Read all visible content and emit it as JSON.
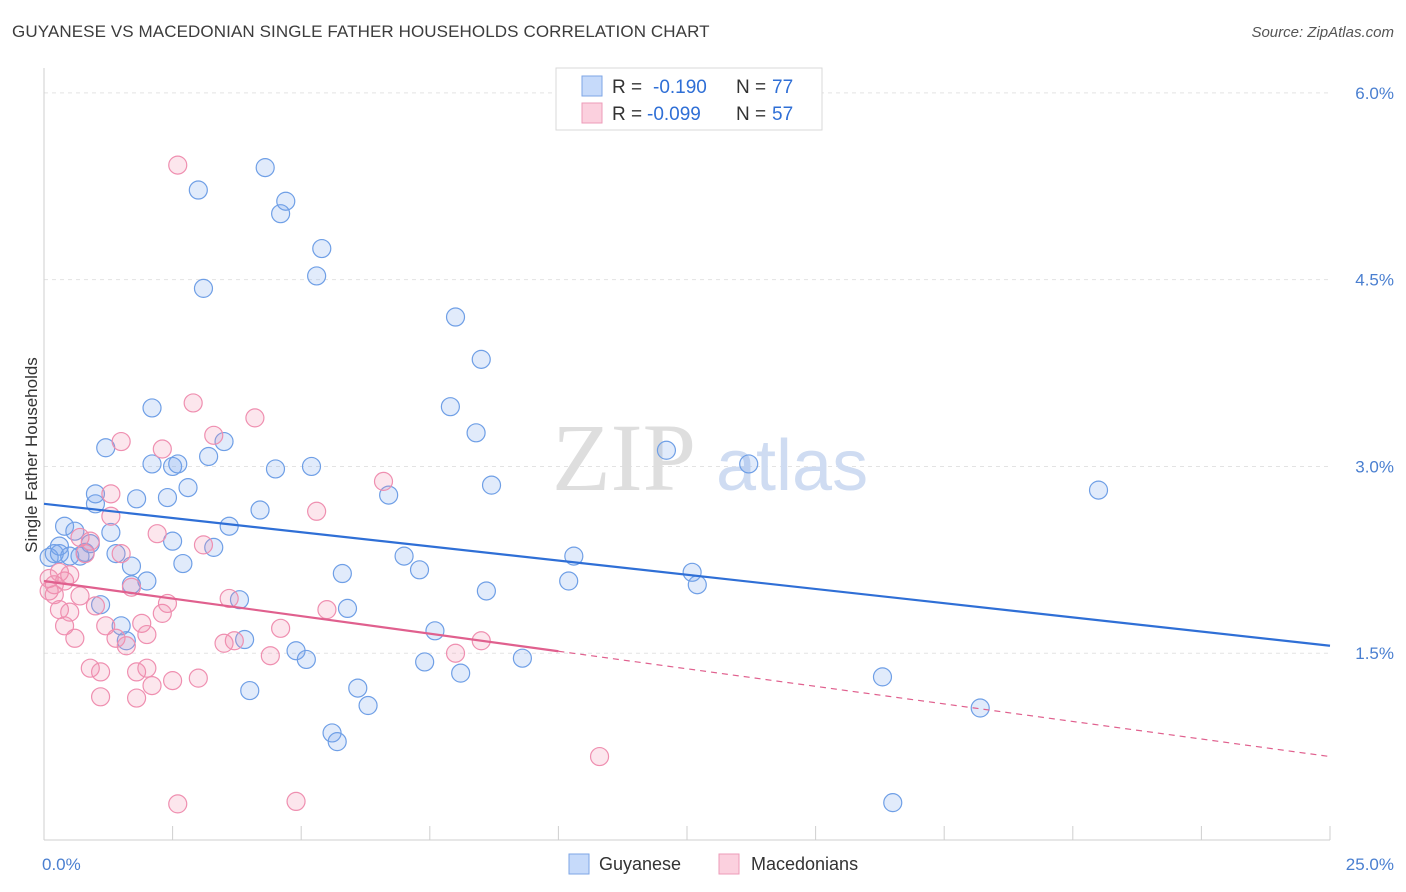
{
  "header": {
    "title": "GUYANESE VS MACEDONIAN SINGLE FATHER HOUSEHOLDS CORRELATION CHART",
    "source": "Source: ZipAtlas.com"
  },
  "watermark": {
    "zip": "ZIP",
    "atlas": "atlas"
  },
  "legend": {
    "r_label": "R =",
    "n_label": "N =",
    "entries": [
      {
        "r": "-0.190",
        "n": "77",
        "color": "#6f9fe6"
      },
      {
        "r": "-0.099",
        "n": "57",
        "color": "#ef8fb0"
      }
    ]
  },
  "bottom_legend": [
    {
      "label": "Guyanese",
      "color": "#6f9fe6"
    },
    {
      "label": "Macedonians",
      "color": "#ef8fb0"
    }
  ],
  "chart_data": {
    "type": "scatter",
    "title": "GUYANESE VS MACEDONIAN SINGLE FATHER HOUSEHOLDS CORRELATION CHART",
    "xlabel": "",
    "ylabel": "Single Father Households",
    "xlim": [
      0,
      25
    ],
    "ylim": [
      0,
      6.2
    ],
    "x_tick_labels": [
      {
        "value": 0,
        "label": "0.0%"
      },
      {
        "value": 25,
        "label": "25.0%"
      }
    ],
    "y_tick_labels": [
      {
        "value": 1.5,
        "label": "1.5%"
      },
      {
        "value": 3.0,
        "label": "3.0%"
      },
      {
        "value": 4.5,
        "label": "4.5%"
      },
      {
        "value": 6.0,
        "label": "6.0%"
      }
    ],
    "grid": true,
    "legend_position": "top-center",
    "series": [
      {
        "name": "Guyanese",
        "color": "#6f9fe6",
        "line_color": "#2f6fd6",
        "trend": {
          "x": [
            0,
            25
          ],
          "y": [
            2.7,
            1.56
          ],
          "solid_until": 25
        },
        "points": [
          [
            0.1,
            2.27
          ],
          [
            0.2,
            2.3
          ],
          [
            0.3,
            2.3
          ],
          [
            0.3,
            2.36
          ],
          [
            0.4,
            2.52
          ],
          [
            0.5,
            2.28
          ],
          [
            0.6,
            2.48
          ],
          [
            0.7,
            2.28
          ],
          [
            0.8,
            2.31
          ],
          [
            0.9,
            2.38
          ],
          [
            1.0,
            2.7
          ],
          [
            1.0,
            2.78
          ],
          [
            1.1,
            1.89
          ],
          [
            1.2,
            3.15
          ],
          [
            1.3,
            2.47
          ],
          [
            1.4,
            2.3
          ],
          [
            1.5,
            1.72
          ],
          [
            1.6,
            1.6
          ],
          [
            1.7,
            2.2
          ],
          [
            1.7,
            2.05
          ],
          [
            1.8,
            2.74
          ],
          [
            2.0,
            2.08
          ],
          [
            2.1,
            3.47
          ],
          [
            2.1,
            3.02
          ],
          [
            2.4,
            2.75
          ],
          [
            2.5,
            3.0
          ],
          [
            2.5,
            2.4
          ],
          [
            2.6,
            3.02
          ],
          [
            2.7,
            2.22
          ],
          [
            2.8,
            2.83
          ],
          [
            3.0,
            5.22
          ],
          [
            3.1,
            4.43
          ],
          [
            3.2,
            3.08
          ],
          [
            3.3,
            2.35
          ],
          [
            3.5,
            3.2
          ],
          [
            3.6,
            2.52
          ],
          [
            3.8,
            1.93
          ],
          [
            3.9,
            1.61
          ],
          [
            4.0,
            1.2
          ],
          [
            4.2,
            2.65
          ],
          [
            4.3,
            5.4
          ],
          [
            4.5,
            2.98
          ],
          [
            4.6,
            5.03
          ],
          [
            4.7,
            5.13
          ],
          [
            4.9,
            1.52
          ],
          [
            5.1,
            1.45
          ],
          [
            5.2,
            3.0
          ],
          [
            5.3,
            4.53
          ],
          [
            5.4,
            4.75
          ],
          [
            5.6,
            0.86
          ],
          [
            5.7,
            0.79
          ],
          [
            5.8,
            2.14
          ],
          [
            5.9,
            1.86
          ],
          [
            6.1,
            1.22
          ],
          [
            6.3,
            1.08
          ],
          [
            6.7,
            2.77
          ],
          [
            7.0,
            2.28
          ],
          [
            7.3,
            2.17
          ],
          [
            7.4,
            1.43
          ],
          [
            7.6,
            1.68
          ],
          [
            7.9,
            3.48
          ],
          [
            8.0,
            4.2
          ],
          [
            8.1,
            1.34
          ],
          [
            8.4,
            3.27
          ],
          [
            8.5,
            3.86
          ],
          [
            8.6,
            2.0
          ],
          [
            8.7,
            2.85
          ],
          [
            9.3,
            1.46
          ],
          [
            10.2,
            2.08
          ],
          [
            10.3,
            2.28
          ],
          [
            12.1,
            3.13
          ],
          [
            12.6,
            2.15
          ],
          [
            12.7,
            2.05
          ],
          [
            13.7,
            3.02
          ],
          [
            16.3,
            1.31
          ],
          [
            18.2,
            1.06
          ],
          [
            16.5,
            0.3
          ],
          [
            20.5,
            2.81
          ]
        ]
      },
      {
        "name": "Macedonians",
        "color": "#ef8fb0",
        "line_color": "#e0608e",
        "trend": {
          "x": [
            0,
            25
          ],
          "y": [
            2.08,
            0.67
          ],
          "solid_until": 10
        },
        "points": [
          [
            0.1,
            2.1
          ],
          [
            0.1,
            2.0
          ],
          [
            0.2,
            1.97
          ],
          [
            0.2,
            2.05
          ],
          [
            0.3,
            1.85
          ],
          [
            0.3,
            2.15
          ],
          [
            0.4,
            1.72
          ],
          [
            0.4,
            2.08
          ],
          [
            0.5,
            2.13
          ],
          [
            0.5,
            1.83
          ],
          [
            0.6,
            1.62
          ],
          [
            0.7,
            2.43
          ],
          [
            0.7,
            1.96
          ],
          [
            0.8,
            2.3
          ],
          [
            0.9,
            2.4
          ],
          [
            0.9,
            1.38
          ],
          [
            1.0,
            1.88
          ],
          [
            1.1,
            1.35
          ],
          [
            1.1,
            1.15
          ],
          [
            1.2,
            1.72
          ],
          [
            1.3,
            2.78
          ],
          [
            1.3,
            2.6
          ],
          [
            1.4,
            1.62
          ],
          [
            1.5,
            3.2
          ],
          [
            1.5,
            2.3
          ],
          [
            1.6,
            1.56
          ],
          [
            1.7,
            2.03
          ],
          [
            1.8,
            1.14
          ],
          [
            1.8,
            1.35
          ],
          [
            1.9,
            1.74
          ],
          [
            2.0,
            1.38
          ],
          [
            2.1,
            1.24
          ],
          [
            2.2,
            2.46
          ],
          [
            2.3,
            3.14
          ],
          [
            2.3,
            1.82
          ],
          [
            2.4,
            1.9
          ],
          [
            2.5,
            1.28
          ],
          [
            2.6,
            5.42
          ],
          [
            2.6,
            0.29
          ],
          [
            2.9,
            3.51
          ],
          [
            3.0,
            1.3
          ],
          [
            3.1,
            2.37
          ],
          [
            3.3,
            3.25
          ],
          [
            3.5,
            1.58
          ],
          [
            3.6,
            1.94
          ],
          [
            3.7,
            1.6
          ],
          [
            4.1,
            3.39
          ],
          [
            4.4,
            1.48
          ],
          [
            4.6,
            1.7
          ],
          [
            4.9,
            0.31
          ],
          [
            5.3,
            2.64
          ],
          [
            5.5,
            1.85
          ],
          [
            6.6,
            2.88
          ],
          [
            8.0,
            1.5
          ],
          [
            8.5,
            1.6
          ],
          [
            10.8,
            0.67
          ],
          [
            2.0,
            1.65
          ]
        ]
      }
    ]
  }
}
